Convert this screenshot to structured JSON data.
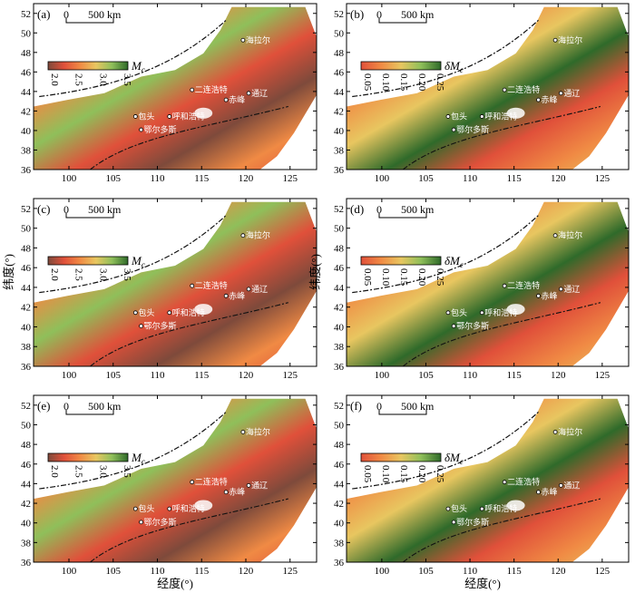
{
  "figure": {
    "x_axis_label": "经度(°)",
    "y_axis_label": "纬度(°)"
  },
  "chart_data": [
    {
      "type": "heatmap",
      "panel": "(a)",
      "quantity": "Mc",
      "colorbar_label": "M",
      "colorbar_sub": "c",
      "colorbar_ticks": [
        "2.0",
        "2.5",
        "3.0",
        "3.5"
      ],
      "vrange": [
        2.0,
        3.5
      ],
      "colorscale": [
        "#7e4a3b",
        "#e0503a",
        "#f08a44",
        "#e8c660",
        "#8fbf5a",
        "#2f6a2a"
      ],
      "xlim": [
        96,
        128
      ],
      "ylim": [
        36,
        53
      ],
      "x_ticks": [
        100,
        105,
        110,
        115,
        120,
        125
      ],
      "y_ticks": [
        36,
        38,
        40,
        42,
        44,
        46,
        48,
        50,
        52
      ],
      "scale_bar": {
        "zero": "0",
        "value": "500",
        "unit": "km"
      },
      "places": [
        "海拉尔",
        "二连浩特",
        "赤峰",
        "通辽",
        "包头",
        "呼和浩特",
        "鄂尔多斯"
      ]
    },
    {
      "type": "heatmap",
      "panel": "(b)",
      "quantity": "δMc",
      "colorbar_label": "δM",
      "colorbar_sub": "c",
      "colorbar_ticks": [
        "0.05",
        "0.10",
        "0.15",
        "0.20",
        "0.25"
      ],
      "vrange": [
        0.05,
        0.25
      ],
      "colorscale": [
        "#e0503a",
        "#f08a44",
        "#e8c660",
        "#8fbf5a",
        "#2f6a2a"
      ],
      "xlim": [
        96,
        128
      ],
      "ylim": [
        36,
        53
      ],
      "x_ticks": [
        100,
        105,
        110,
        115,
        120,
        125
      ],
      "y_ticks": [
        36,
        38,
        40,
        42,
        44,
        46,
        48,
        50,
        52
      ],
      "scale_bar": {
        "zero": "0",
        "value": "500",
        "unit": "km"
      },
      "places": [
        "海拉尔",
        "二连浩特",
        "赤峰",
        "通辽",
        "包头",
        "呼和浩特",
        "鄂尔多斯"
      ]
    },
    {
      "type": "heatmap",
      "panel": "(c)",
      "quantity": "Mc",
      "colorbar_label": "M",
      "colorbar_sub": "c",
      "colorbar_ticks": [
        "2.0",
        "2.5",
        "3.0",
        "3.5"
      ],
      "vrange": [
        2.0,
        3.5
      ],
      "colorscale": [
        "#7e4a3b",
        "#e0503a",
        "#f08a44",
        "#e8c660",
        "#8fbf5a",
        "#2f6a2a"
      ],
      "xlim": [
        96,
        128
      ],
      "ylim": [
        36,
        53
      ],
      "x_ticks": [
        100,
        105,
        110,
        115,
        120,
        125
      ],
      "y_ticks": [
        36,
        38,
        40,
        42,
        44,
        46,
        48,
        50,
        52
      ],
      "scale_bar": {
        "zero": "0",
        "value": "500",
        "unit": "km"
      },
      "places": [
        "海拉尔",
        "二连浩特",
        "赤峰",
        "通辽",
        "包头",
        "呼和浩特",
        "鄂尔多斯"
      ]
    },
    {
      "type": "heatmap",
      "panel": "(d)",
      "quantity": "δMc",
      "colorbar_label": "δM",
      "colorbar_sub": "c",
      "colorbar_ticks": [
        "0.05",
        "0.10",
        "0.15",
        "0.20",
        "0.25"
      ],
      "vrange": [
        0.05,
        0.25
      ],
      "colorscale": [
        "#e0503a",
        "#f08a44",
        "#e8c660",
        "#8fbf5a",
        "#2f6a2a"
      ],
      "xlim": [
        96,
        128
      ],
      "ylim": [
        36,
        53
      ],
      "x_ticks": [
        100,
        105,
        110,
        115,
        120,
        125
      ],
      "y_ticks": [
        36,
        38,
        40,
        42,
        44,
        46,
        48,
        50,
        52
      ],
      "scale_bar": {
        "zero": "0",
        "value": "500",
        "unit": "km"
      },
      "places": [
        "海拉尔",
        "二连浩特",
        "赤峰",
        "通辽",
        "包头",
        "呼和浩特",
        "鄂尔多斯"
      ]
    },
    {
      "type": "heatmap",
      "panel": "(e)",
      "quantity": "Mc",
      "colorbar_label": "M",
      "colorbar_sub": "c",
      "colorbar_ticks": [
        "2.0",
        "2.5",
        "3.0",
        "3.5"
      ],
      "vrange": [
        2.0,
        3.5
      ],
      "colorscale": [
        "#7e4a3b",
        "#e0503a",
        "#f08a44",
        "#e8c660",
        "#8fbf5a",
        "#2f6a2a"
      ],
      "xlim": [
        96,
        128
      ],
      "ylim": [
        36,
        53
      ],
      "x_ticks": [
        100,
        105,
        110,
        115,
        120,
        125
      ],
      "y_ticks": [
        36,
        38,
        40,
        42,
        44,
        46,
        48,
        50,
        52
      ],
      "scale_bar": {
        "zero": "0",
        "value": "500",
        "unit": "km"
      },
      "places": [
        "海拉尔",
        "二连浩特",
        "赤峰",
        "通辽",
        "包头",
        "呼和浩特",
        "鄂尔多斯"
      ]
    },
    {
      "type": "heatmap",
      "panel": "(f)",
      "quantity": "δMc",
      "colorbar_label": "δM",
      "colorbar_sub": "c",
      "colorbar_ticks": [
        "0.05",
        "0.10",
        "0.15",
        "0.20",
        "0.25"
      ],
      "vrange": [
        0.05,
        0.25
      ],
      "colorscale": [
        "#e0503a",
        "#f08a44",
        "#e8c660",
        "#8fbf5a",
        "#2f6a2a"
      ],
      "xlim": [
        96,
        128
      ],
      "ylim": [
        36,
        53
      ],
      "x_ticks": [
        100,
        105,
        110,
        115,
        120,
        125
      ],
      "y_ticks": [
        36,
        38,
        40,
        42,
        44,
        46,
        48,
        50,
        52
      ],
      "scale_bar": {
        "zero": "0",
        "value": "500",
        "unit": "km"
      },
      "places": [
        "海拉尔",
        "二连浩特",
        "赤峰",
        "通辽",
        "包头",
        "呼和浩特",
        "鄂尔多斯"
      ]
    }
  ]
}
